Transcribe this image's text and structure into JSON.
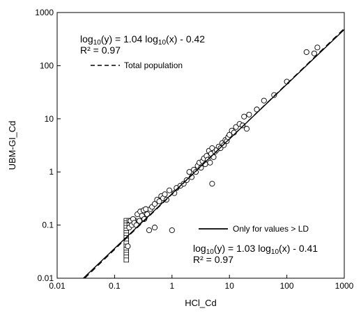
{
  "chart_data": {
    "type": "scatter",
    "x_scale": "log",
    "y_scale": "log",
    "xlim": [
      0.01,
      1000
    ],
    "ylim": [
      0.01,
      1000
    ],
    "grid": false,
    "xlabel": "HCl_Cd",
    "ylabel": "UBM-GI_Cd",
    "x_ticks": [
      0.01,
      0.1,
      1,
      10,
      100,
      1000
    ],
    "y_ticks": [
      0.01,
      0.1,
      1,
      10,
      100,
      1000
    ],
    "x_tick_labels": [
      "0.01",
      "0.1",
      "1",
      "10",
      "100",
      "1000"
    ],
    "y_tick_labels": [
      "0.01",
      "0.1",
      "1",
      "10",
      "100",
      "1000"
    ],
    "annotations": {
      "total": {
        "equation_parts": [
          "log",
          "10",
          "(y) = 1.04 log",
          "10",
          "(x) - 0.42"
        ],
        "r2": "R² = 0.97",
        "legend_label": "Total population",
        "line_style": "dashed",
        "slope": 1.04,
        "intercept": -0.42
      },
      "ld": {
        "equation_parts": [
          "log",
          "10",
          "(y) = 1.03 log",
          "10",
          "(x) - 0.41"
        ],
        "r2": "R² = 0.97",
        "legend_label": "Only for values > LD",
        "line_style": "solid",
        "slope": 1.03,
        "intercept": -0.41
      }
    },
    "series": [
      {
        "marker": "circle",
        "points": [
          [
            0.17,
            0.04
          ],
          [
            0.18,
            0.09
          ],
          [
            0.19,
            0.12
          ],
          [
            0.2,
            0.1
          ],
          [
            0.21,
            0.13
          ],
          [
            0.22,
            0.11
          ],
          [
            0.24,
            0.1
          ],
          [
            0.25,
            0.16
          ],
          [
            0.27,
            0.12
          ],
          [
            0.28,
            0.18
          ],
          [
            0.3,
            0.15
          ],
          [
            0.32,
            0.19
          ],
          [
            0.33,
            0.13
          ],
          [
            0.35,
            0.2
          ],
          [
            0.37,
            0.16
          ],
          [
            0.4,
            0.08
          ],
          [
            0.42,
            0.2
          ],
          [
            0.45,
            0.22
          ],
          [
            0.5,
            0.09
          ],
          [
            0.5,
            0.25
          ],
          [
            0.55,
            0.3
          ],
          [
            0.6,
            0.28
          ],
          [
            0.65,
            0.35
          ],
          [
            0.7,
            0.32
          ],
          [
            0.75,
            0.38
          ],
          [
            0.8,
            0.3
          ],
          [
            0.9,
            0.45
          ],
          [
            1.0,
            0.08
          ],
          [
            1.1,
            0.4
          ],
          [
            1.2,
            0.5
          ],
          [
            1.4,
            0.55
          ],
          [
            1.6,
            0.6
          ],
          [
            1.8,
            0.7
          ],
          [
            2.0,
            1.0
          ],
          [
            2.2,
            0.8
          ],
          [
            2.4,
            1.1
          ],
          [
            2.6,
            1.0
          ],
          [
            2.8,
            1.3
          ],
          [
            3.0,
            1.5
          ],
          [
            3.2,
            1.2
          ],
          [
            3.4,
            1.6
          ],
          [
            3.6,
            1.8
          ],
          [
            3.8,
            1.4
          ],
          [
            4.0,
            2.0
          ],
          [
            4.2,
            1.7
          ],
          [
            4.4,
            2.5
          ],
          [
            4.6,
            1.5
          ],
          [
            4.8,
            2.2
          ],
          [
            5.0,
            0.6
          ],
          [
            5.0,
            2.8
          ],
          [
            5.3,
            1.9
          ],
          [
            5.6,
            2.4
          ],
          [
            6.0,
            2.6
          ],
          [
            6.5,
            3.0
          ],
          [
            7.0,
            2.8
          ],
          [
            7.5,
            3.5
          ],
          [
            8.0,
            3.2
          ],
          [
            8.5,
            4.0
          ],
          [
            9.0,
            3.8
          ],
          [
            9.5,
            4.5
          ],
          [
            10.0,
            5.0
          ],
          [
            11.0,
            6.0
          ],
          [
            12.0,
            5.5
          ],
          [
            13.0,
            7.0
          ],
          [
            15.0,
            8.0
          ],
          [
            17.0,
            7.5
          ],
          [
            18.0,
            11.0
          ],
          [
            20.0,
            6.5
          ],
          [
            22.0,
            12.0
          ],
          [
            30.0,
            15.0
          ],
          [
            40.0,
            22.0
          ],
          [
            60.0,
            28.0
          ],
          [
            100.0,
            50.0
          ],
          [
            220.0,
            180.0
          ],
          [
            300.0,
            170.0
          ],
          [
            340.0,
            220.0
          ]
        ]
      },
      {
        "marker": "square",
        "points": [
          [
            0.16,
            0.122
          ],
          [
            0.16,
            0.11
          ],
          [
            0.16,
            0.1
          ],
          [
            0.16,
            0.09
          ],
          [
            0.16,
            0.08
          ],
          [
            0.16,
            0.072
          ],
          [
            0.16,
            0.065
          ],
          [
            0.16,
            0.058
          ],
          [
            0.16,
            0.052
          ],
          [
            0.16,
            0.046
          ],
          [
            0.16,
            0.04
          ],
          [
            0.16,
            0.035
          ],
          [
            0.16,
            0.031
          ],
          [
            0.16,
            0.028
          ],
          [
            0.16,
            0.025
          ],
          [
            0.16,
            0.022
          ],
          [
            0.18,
            0.122
          ],
          [
            0.2,
            0.122
          ],
          [
            0.22,
            0.122
          ],
          [
            0.18,
            0.1
          ],
          [
            0.2,
            0.11
          ]
        ]
      }
    ]
  }
}
